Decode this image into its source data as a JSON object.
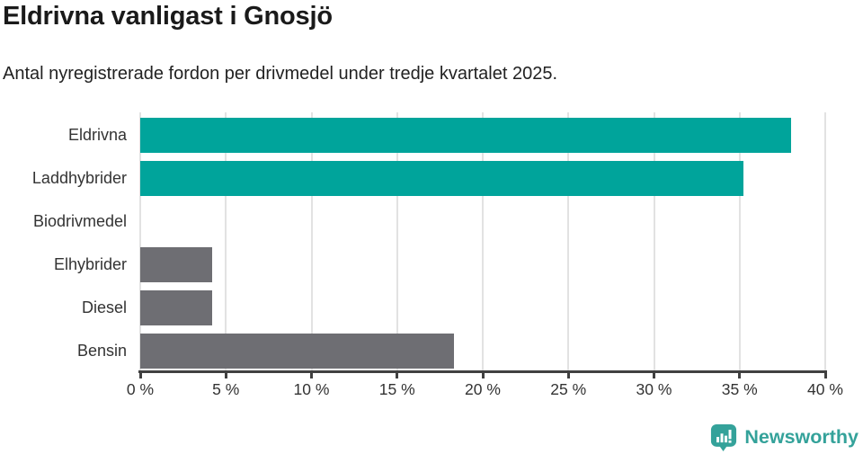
{
  "title": "Eldrivna vanligast i Gnosjö",
  "subtitle": "Antal nyregistrerade fordon per drivmedel under tredje kvartalet 2025.",
  "chart_data": {
    "type": "bar",
    "orientation": "horizontal",
    "title": "Eldrivna vanligast i Gnosjö",
    "subtitle": "Antal nyregistrerade fordon per drivmedel under tredje kvartalet 2025.",
    "categories": [
      "Eldrivna",
      "Laddhybrider",
      "Biodrivmedel",
      "Elhybrider",
      "Diesel",
      "Bensin"
    ],
    "values": [
      38.0,
      35.2,
      0,
      4.2,
      4.2,
      18.3
    ],
    "unit": "%",
    "xlabel": "",
    "ylabel": "",
    "xlim": [
      0,
      40
    ],
    "x_tick_values": [
      0,
      5,
      10,
      15,
      20,
      25,
      30,
      35,
      40
    ],
    "x_tick_labels": [
      "0 %",
      "5 %",
      "10 %",
      "15 %",
      "20 %",
      "25 %",
      "30 %",
      "35 %",
      "40 %"
    ],
    "grid": "vertical",
    "legend": "none",
    "bar_colors": [
      "#00A49B",
      "#00A49B",
      "#6E6E73",
      "#6E6E73",
      "#6E6E73",
      "#6E6E73"
    ]
  },
  "colors": {
    "teal": "#00A49B",
    "gray": "#6E6E73",
    "grid": "#E2E2E2",
    "axis": "#404040",
    "tick_text": "#333333",
    "logo_teal": "#34A29A"
  },
  "branding": {
    "name": "Newsworthy",
    "icon": "newsworthy-chart-bubble-icon"
  }
}
